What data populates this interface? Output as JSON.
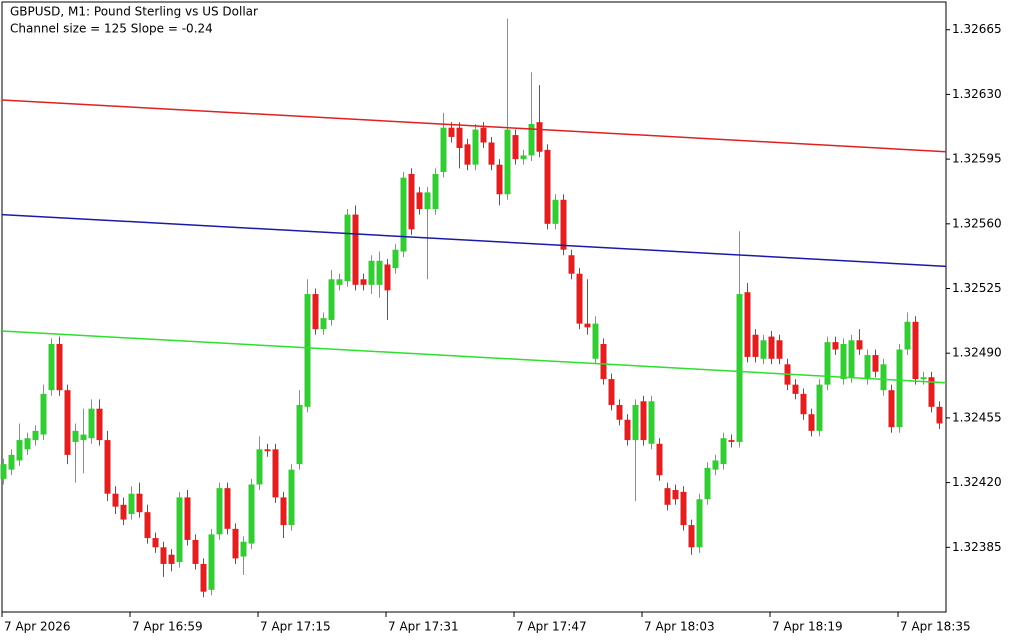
{
  "chart_data": {
    "type": "candlestick",
    "title": "GBPUSD, M1:  Pound Sterling vs US Dollar",
    "subtitle": "Channel size = 125 Slope = -0.24",
    "categories": [
      "7 Apr 2026",
      null,
      null,
      null,
      null,
      null,
      null,
      null,
      null,
      null,
      null,
      null,
      null,
      null,
      null,
      null,
      "7 Apr 16:59",
      null,
      null,
      null,
      null,
      null,
      null,
      null,
      null,
      null,
      null,
      null,
      null,
      null,
      null,
      null,
      "7 Apr 17:15",
      null,
      null,
      null,
      null,
      null,
      null,
      null,
      null,
      null,
      null,
      null,
      null,
      null,
      null,
      null,
      "7 Apr 17:31",
      null,
      null,
      null,
      null,
      null,
      null,
      null,
      null,
      null,
      null,
      null,
      null,
      null,
      null,
      null,
      "7 Apr 17:47",
      null,
      null,
      null,
      null,
      null,
      null,
      null,
      null,
      null,
      null,
      null,
      null,
      null,
      null,
      null,
      "7 Apr 18:03",
      null,
      null,
      null,
      null,
      null,
      null,
      null,
      null,
      null,
      null,
      null,
      null,
      null,
      null,
      null,
      "7 Apr 18:19",
      null,
      null,
      null,
      null,
      null,
      null,
      null,
      null,
      null,
      null,
      null,
      null,
      null,
      null,
      null,
      "7 Apr 18:35",
      null,
      null,
      null,
      null,
      null
    ],
    "open": [
      1.32422,
      1.32427,
      1.32432,
      1.32438,
      1.32443,
      1.32446,
      1.3247,
      1.32495,
      1.3247,
      1.32442,
      1.32443,
      1.32444,
      1.3246,
      1.32443,
      1.32414,
      1.32408,
      1.32403,
      1.32414,
      1.32404,
      1.3239,
      1.32385,
      1.32381,
      1.32377,
      1.32412,
      1.32389,
      1.32376,
      1.32362,
      1.32392,
      1.32417,
      1.32395,
      1.3238,
      1.32387,
      1.32419,
      1.32438,
      1.32438,
      1.32412,
      1.32397,
      1.3243,
      1.32461,
      1.32522,
      1.32503,
      1.32508,
      1.32527,
      1.32529,
      1.32565,
      1.3253,
      1.32527,
      1.32527,
      1.32538,
      1.32536,
      1.32545,
      1.32587,
      1.32577,
      1.32568,
      1.32568,
      1.32588,
      1.32612,
      1.32612,
      1.32603,
      1.32592,
      1.32612,
      1.32604,
      1.32592,
      1.32576,
      1.32608,
      1.32595,
      1.32597,
      1.32615,
      1.326,
      1.3256,
      1.32573,
      1.32543,
      1.32533,
      1.32506,
      1.32487,
      1.32495,
      1.32476,
      1.32462,
      1.32454,
      1.32443,
      1.32464,
      1.32441,
      1.32441,
      1.32417,
      1.32416,
      1.32415,
      1.32397,
      1.32385,
      1.32411,
      1.32427,
      1.3243,
      1.32443,
      1.32442,
      1.32523,
      1.325,
      1.32487,
      1.32499,
      1.32497,
      1.32484,
      1.32473,
      1.32468,
      1.32457,
      1.32448,
      1.32473,
      1.32496,
      1.32476,
      1.32477,
      1.32497,
      1.32476,
      1.32489,
      1.3247,
      1.3247,
      1.3245,
      1.32492,
      1.32507,
      1.32476,
      1.32477,
      1.32461
    ],
    "high": [
      1.32433,
      1.32438,
      1.32452,
      1.32447,
      1.32451,
      1.32473,
      1.32498,
      1.32499,
      1.32473,
      1.32452,
      1.3246,
      1.32465,
      1.32465,
      1.32448,
      1.32418,
      1.32412,
      1.32418,
      1.3242,
      1.32408,
      1.32393,
      1.32388,
      1.32384,
      1.32415,
      1.32416,
      1.32392,
      1.32379,
      1.32395,
      1.3242,
      1.3242,
      1.32398,
      1.32391,
      1.32422,
      1.32445,
      1.32441,
      1.32441,
      1.32415,
      1.3243,
      1.3247,
      1.3253,
      1.32525,
      1.32512,
      1.32535,
      1.32533,
      1.32568,
      1.3257,
      1.32533,
      1.32543,
      1.32545,
      1.32541,
      1.32549,
      1.32588,
      1.3259,
      1.3258,
      1.3258,
      1.3259,
      1.3262,
      1.32615,
      1.32615,
      1.32606,
      1.32614,
      1.32615,
      1.32607,
      1.32595,
      1.32671,
      1.32611,
      1.326,
      1.32642,
      1.32635,
      1.32603,
      1.32576,
      1.32576,
      1.32546,
      1.32536,
      1.3253,
      1.3251,
      1.32498,
      1.32479,
      1.32465,
      1.32457,
      1.32465,
      1.32467,
      1.32467,
      1.32444,
      1.3242,
      1.32419,
      1.32418,
      1.324,
      1.32414,
      1.32431,
      1.32435,
      1.32447,
      1.32446,
      1.32556,
      1.32528,
      1.32503,
      1.325,
      1.32502,
      1.325,
      1.32487,
      1.32476,
      1.32471,
      1.3246,
      1.32476,
      1.32499,
      1.32499,
      1.32498,
      1.325,
      1.32503,
      1.32492,
      1.32492,
      1.32487,
      1.32473,
      1.32495,
      1.32512,
      1.3251,
      1.3248,
      1.3248,
      1.32464
    ],
    "low": [
      1.32419,
      1.32424,
      1.32429,
      1.32435,
      1.3244,
      1.32443,
      1.32467,
      1.32467,
      1.3243,
      1.3242,
      1.32425,
      1.32441,
      1.3244,
      1.3241,
      1.32403,
      1.32397,
      1.324,
      1.32401,
      1.32387,
      1.32382,
      1.32369,
      1.32372,
      1.32374,
      1.32386,
      1.32373,
      1.32358,
      1.32359,
      1.32389,
      1.32392,
      1.32376,
      1.3237,
      1.32384,
      1.32416,
      1.32434,
      1.32409,
      1.3239,
      1.32394,
      1.32427,
      1.32458,
      1.325,
      1.325,
      1.32505,
      1.32524,
      1.32526,
      1.32524,
      1.32524,
      1.32522,
      1.3252,
      1.32508,
      1.32533,
      1.32542,
      1.32554,
      1.32565,
      1.3253,
      1.32565,
      1.32585,
      1.32604,
      1.3259,
      1.32589,
      1.32589,
      1.32601,
      1.32589,
      1.3257,
      1.32573,
      1.32592,
      1.32592,
      1.32594,
      1.32596,
      1.32557,
      1.32557,
      1.32543,
      1.3253,
      1.32503,
      1.325,
      1.32484,
      1.32473,
      1.32459,
      1.32451,
      1.3244,
      1.3241,
      1.3244,
      1.32438,
      1.32421,
      1.32405,
      1.32408,
      1.32394,
      1.32381,
      1.32382,
      1.32408,
      1.32424,
      1.32427,
      1.32439,
      1.32439,
      1.32485,
      1.32485,
      1.32484,
      1.32484,
      1.32484,
      1.3247,
      1.32465,
      1.32454,
      1.32445,
      1.32445,
      1.3247,
      1.32489,
      1.32473,
      1.32474,
      1.32489,
      1.32473,
      1.32477,
      1.32467,
      1.32447,
      1.32447,
      1.32489,
      1.32473,
      1.32473,
      1.32458,
      1.32449
    ],
    "close": [
      1.3243,
      1.32435,
      1.32443,
      1.32444,
      1.32448,
      1.32468,
      1.32495,
      1.3247,
      1.32435,
      1.32448,
      1.32446,
      1.3246,
      1.32443,
      1.32414,
      1.32407,
      1.324,
      1.32414,
      1.32404,
      1.3239,
      1.32385,
      1.32376,
      1.32376,
      1.32412,
      1.32389,
      1.32376,
      1.32361,
      1.32392,
      1.32417,
      1.32395,
      1.32379,
      1.32388,
      1.32419,
      1.32438,
      1.32437,
      1.32412,
      1.32397,
      1.32427,
      1.32462,
      1.32522,
      1.32503,
      1.32509,
      1.3253,
      1.3253,
      1.32565,
      1.32527,
      1.32527,
      1.3254,
      1.3254,
      1.32524,
      1.32546,
      1.32585,
      1.32557,
      1.32568,
      1.32577,
      1.32587,
      1.32612,
      1.32607,
      1.32601,
      1.32592,
      1.32611,
      1.32604,
      1.32592,
      1.32576,
      1.32611,
      1.32595,
      1.32597,
      1.32614,
      1.32599,
      1.3256,
      1.32573,
      1.32546,
      1.32533,
      1.32506,
      1.32504,
      1.32506,
      1.32476,
      1.32462,
      1.32454,
      1.32443,
      1.32462,
      1.32443,
      1.32464,
      1.32424,
      1.32408,
      1.32411,
      1.32397,
      1.32385,
      1.32411,
      1.32428,
      1.32432,
      1.32444,
      1.32442,
      1.32522,
      1.32488,
      1.32488,
      1.32497,
      1.32487,
      1.32487,
      1.32473,
      1.32468,
      1.32457,
      1.32448,
      1.32473,
      1.32496,
      1.32492,
      1.32495,
      1.32497,
      1.32492,
      1.32489,
      1.3248,
      1.32484,
      1.3245,
      1.32492,
      1.32507,
      1.32476,
      1.32477,
      1.32461,
      1.32452
    ],
    "up_color": "#32cd32",
    "down_color": "#e41e1e",
    "lines": [
      {
        "color": "#e02020",
        "values": [
          1.32627,
          1.32599
        ]
      },
      {
        "color": "#1a1aa8",
        "values": [
          1.32565,
          1.32537
        ]
      },
      {
        "color": "#2ee02e",
        "values": [
          1.32502,
          1.32474
        ]
      }
    ],
    "ylim": [
      1.3235,
      1.3268
    ],
    "yticks": [
      1.32385,
      {
        "value": 1.3242,
        "label": "1.32420"
      },
      1.32455,
      {
        "value": 1.3249,
        "label": "1.32490"
      },
      1.32525,
      {
        "value": 1.3256,
        "label": "1.32560"
      },
      1.32595,
      {
        "value": 1.3263,
        "label": "1.32630"
      },
      1.32665
    ]
  }
}
